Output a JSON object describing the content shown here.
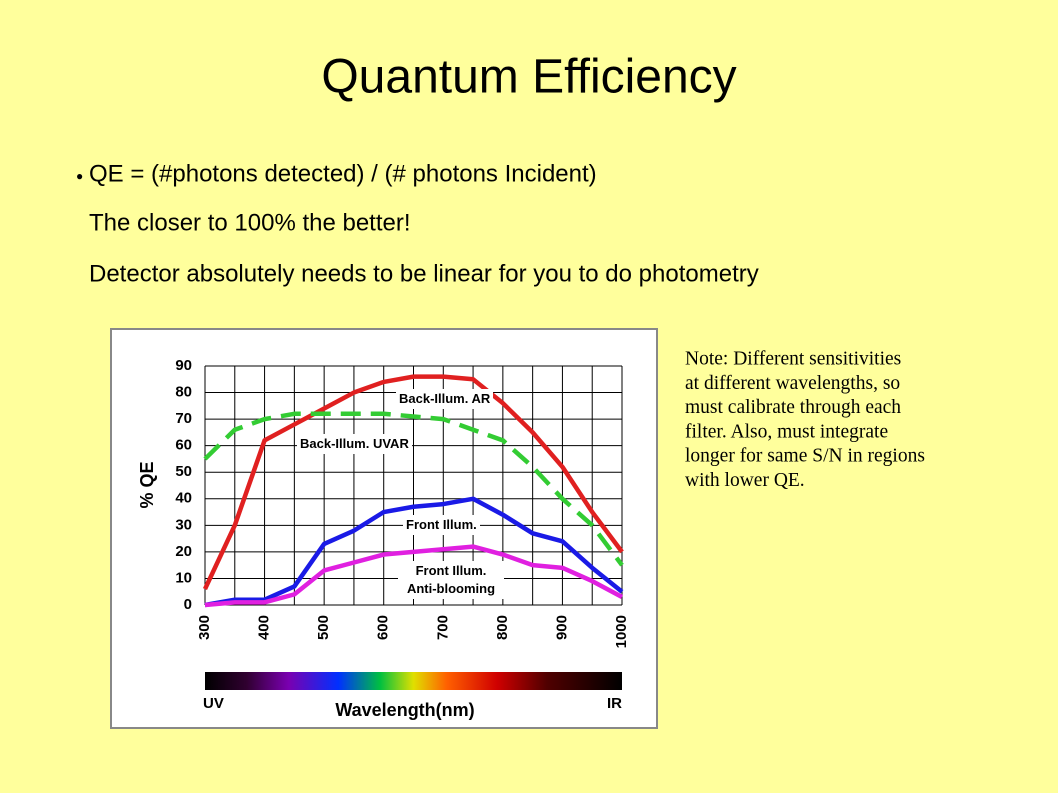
{
  "title": "Quantum Efficiency",
  "bullet": "QE = (#photons detected) / (# photons Incident)",
  "lines": [
    "The closer to 100% the better!",
    "Detector absolutely needs to be linear for you to do photometry"
  ],
  "note": [
    "Note: Different sensitivities",
    "at different wavelengths, so",
    "must calibrate through each",
    "filter.   Also, must integrate",
    "longer for same S/N in regions",
    "with lower QE."
  ],
  "chart_data": {
    "type": "line",
    "x_label": "Wavelength(nm)",
    "y_label": "% QE",
    "spectrum_left": "UV",
    "spectrum_right": "IR",
    "x": [
      300,
      350,
      400,
      450,
      500,
      550,
      600,
      650,
      700,
      750,
      800,
      850,
      900,
      950,
      1000
    ],
    "xlim": [
      300,
      1000
    ],
    "ylim": [
      0,
      90
    ],
    "xticks": [
      300,
      400,
      500,
      600,
      700,
      800,
      900,
      1000
    ],
    "xminorticks": [
      350,
      450,
      550,
      650,
      750,
      850,
      950
    ],
    "yticks": [
      0,
      10,
      20,
      30,
      40,
      50,
      60,
      70,
      80,
      90
    ],
    "grid": true,
    "series": [
      {
        "name": "Back-Illum. AR",
        "color": "#e02020",
        "dashed": false,
        "values": [
          6,
          30,
          62,
          68,
          74,
          80,
          84,
          86,
          86,
          85,
          76,
          65,
          52,
          35,
          20
        ]
      },
      {
        "name": "Back-Illum. UVAR",
        "color": "#33cc33",
        "dashed": true,
        "values": [
          55,
          66,
          70,
          72,
          72,
          72,
          72,
          71,
          70,
          66,
          62,
          52,
          40,
          30,
          15
        ]
      },
      {
        "name": "Front Illum.",
        "color": "#1a1ae6",
        "dashed": false,
        "values": [
          0,
          2,
          2,
          7,
          23,
          28,
          35,
          37,
          38,
          40,
          34,
          27,
          24,
          14,
          5
        ]
      },
      {
        "name": "Front Illum. Anti-blooming",
        "color": "#e020e0",
        "dashed": false,
        "values": [
          0,
          1,
          1,
          4,
          13,
          16,
          19,
          20,
          21,
          22,
          19,
          15,
          14,
          9,
          3
        ]
      }
    ]
  }
}
